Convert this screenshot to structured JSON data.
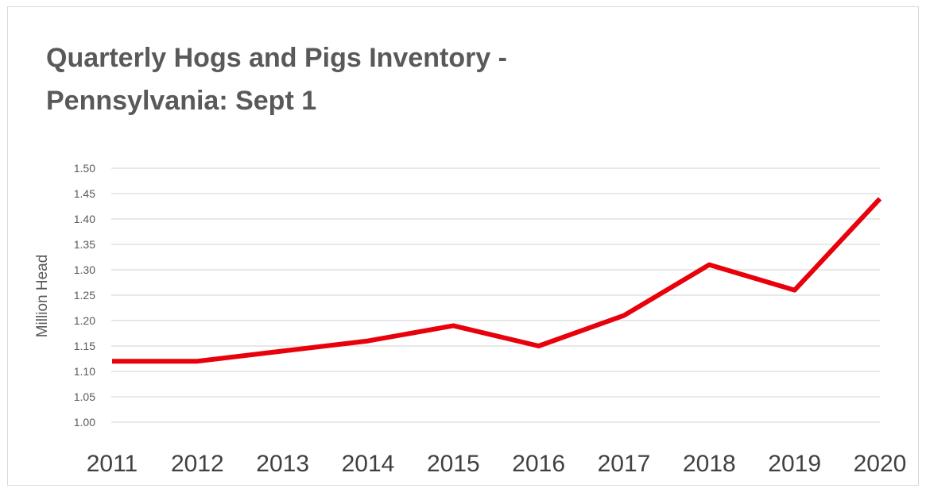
{
  "chart_data": {
    "type": "line",
    "title": "Quarterly Hogs and Pigs Inventory - Pennsylvania: Sept 1",
    "xlabel": "",
    "ylabel": "Million Head",
    "categories": [
      "2011",
      "2012",
      "2013",
      "2014",
      "2015",
      "2016",
      "2017",
      "2018",
      "2019",
      "2020"
    ],
    "series": [
      {
        "values": [
          1.12,
          1.12,
          1.14,
          1.16,
          1.19,
          1.15,
          1.21,
          1.31,
          1.26,
          1.44
        ],
        "color": "#e8000b"
      }
    ],
    "ylim": [
      1.0,
      1.5
    ],
    "yticks": [
      "1.00",
      "1.05",
      "1.10",
      "1.15",
      "1.20",
      "1.25",
      "1.30",
      "1.35",
      "1.40",
      "1.45",
      "1.50"
    ],
    "grid": true,
    "legend": "none",
    "colors": {
      "gridline": "#d9d9d9",
      "title": "#595959",
      "line": "#e8000b"
    }
  }
}
